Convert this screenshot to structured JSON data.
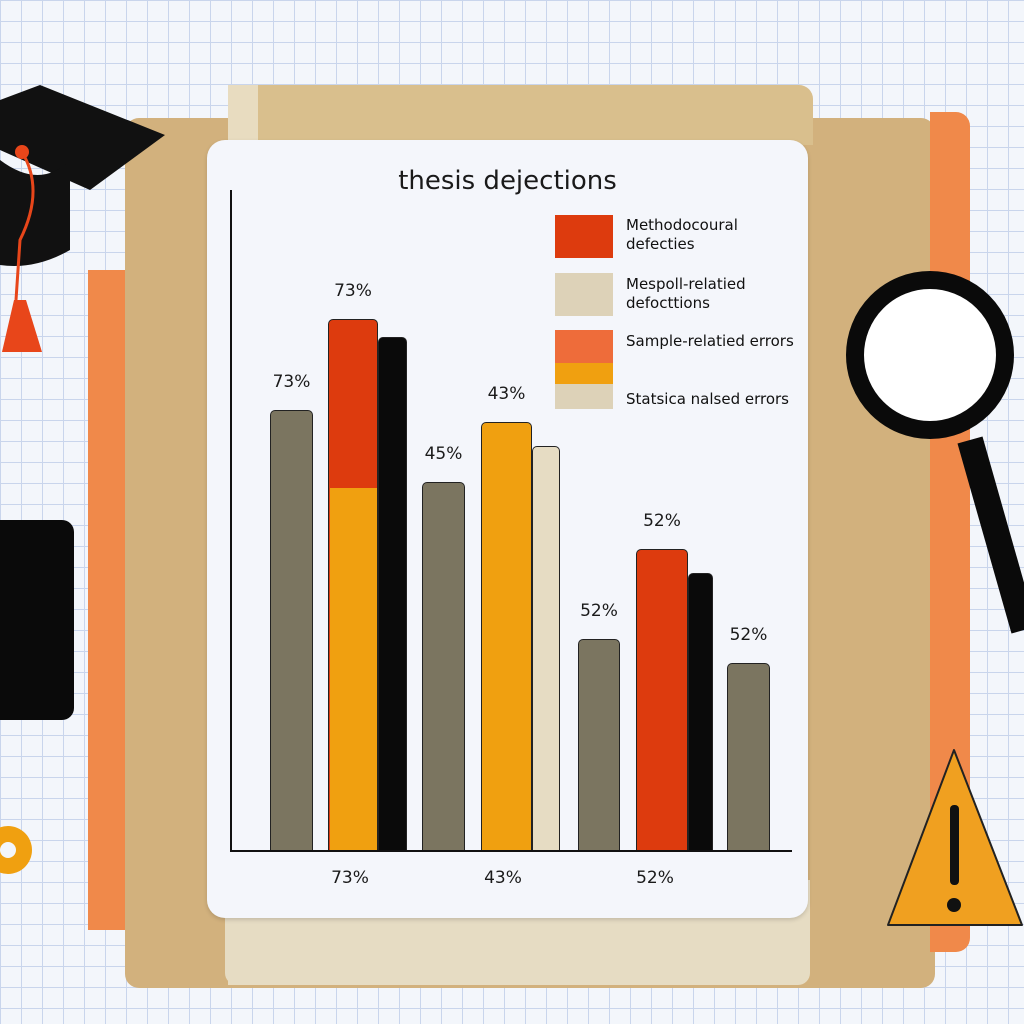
{
  "chart_data": {
    "type": "bar",
    "title": "thesis dejections",
    "legend_placement": "top-right",
    "legend": [
      {
        "label": "Methodocoural defecties",
        "color": "#dd3b0e"
      },
      {
        "label": "Mespoll-relatied defocttions",
        "color": "#ddd2b8"
      },
      {
        "label": "Sample-relatied errors",
        "color": "#ee6c3a"
      },
      {
        "label": "Statsica nalsed errors",
        "color": "#ddd2b8"
      }
    ],
    "groups": [
      {
        "category_label": "73%",
        "bars": [
          {
            "value": 73,
            "label": "73%",
            "color": "#7b7560"
          },
          {
            "value": 88,
            "label": "73%",
            "color": "#dd3b0e",
            "stack_lower": {
              "value": 60,
              "color": "#f0a010"
            }
          },
          {
            "value": 85,
            "label": "",
            "color": "#0a0a0a"
          }
        ]
      },
      {
        "category_label": "43%",
        "bars": [
          {
            "value": 61,
            "label": "45%",
            "color": "#7b7560"
          },
          {
            "value": 71,
            "label": "43%",
            "color": "#f0a010"
          },
          {
            "value": 67,
            "label": "",
            "color": "#e6dcc3"
          }
        ]
      },
      {
        "category_label": "52%",
        "bars": [
          {
            "value": 35,
            "label": "52%",
            "color": "#7b7560"
          },
          {
            "value": 50,
            "label": "52%",
            "color": "#dd3b0e"
          },
          {
            "value": 46,
            "label": "",
            "color": "#0a0a0a"
          },
          {
            "value": 31,
            "label": "52%",
            "color": "#7b7560"
          }
        ]
      }
    ],
    "ylim": [
      0,
      100
    ],
    "grid": false
  }
}
